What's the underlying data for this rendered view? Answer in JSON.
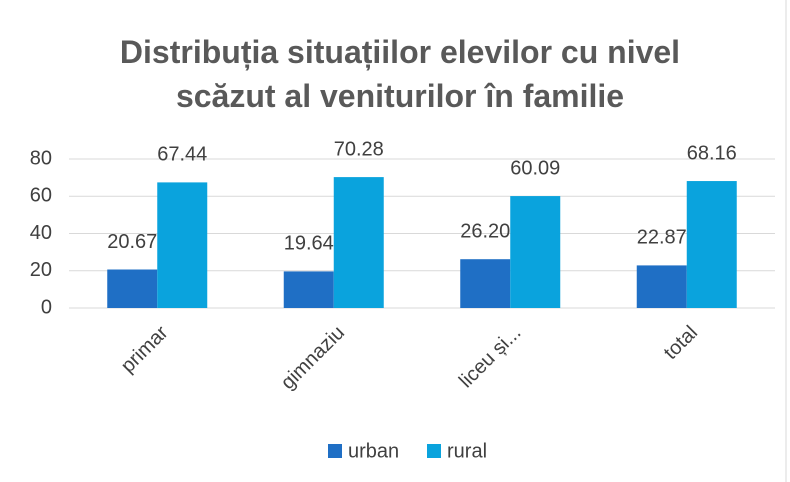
{
  "chart_data": {
    "type": "bar",
    "title": "Distribuția situațiilor elevilor cu nivel scăzut al veniturilor în familie",
    "categories": [
      "primar",
      "gimnaziu",
      "liceu și...",
      "total"
    ],
    "series": [
      {
        "name": "urban",
        "color": "#1f6fc5",
        "values": [
          20.67,
          19.64,
          26.2,
          22.87
        ],
        "value_labels": [
          "20.67",
          "19.64",
          "26.20",
          "22.87"
        ]
      },
      {
        "name": "rural",
        "color": "#0aa3dd",
        "values": [
          67.44,
          70.28,
          60.09,
          68.16
        ],
        "value_labels": [
          "67.44",
          "70.28",
          "60.09",
          "68.16"
        ]
      }
    ],
    "ylim": [
      0,
      80
    ],
    "yticks": [
      0,
      20,
      40,
      60,
      80
    ],
    "grid": true,
    "legend": "bottom"
  }
}
